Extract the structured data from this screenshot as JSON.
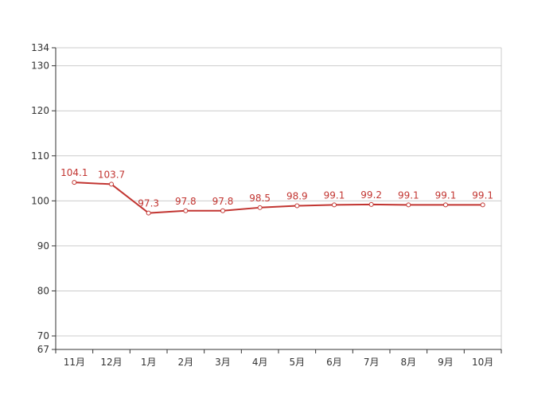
{
  "chart_data": {
    "type": "line",
    "categories": [
      "11月",
      "12月",
      "1月",
      "2月",
      "3月",
      "4月",
      "5月",
      "6月",
      "7月",
      "8月",
      "9月",
      "10月"
    ],
    "series": [
      {
        "values": [
          104.1,
          103.7,
          97.3,
          97.8,
          97.8,
          98.5,
          98.9,
          99.1,
          99.2,
          99.1,
          99.1,
          99.1
        ],
        "data_labels": [
          "104.1",
          "103.7",
          "97.3",
          "97.8",
          "97.8",
          "98.5",
          "98.9",
          "99.1",
          "99.2",
          "99.1",
          "99.1",
          "99.1"
        ]
      }
    ],
    "title": "",
    "xlabel": "",
    "ylabel": "",
    "ylim": [
      67,
      134
    ],
    "yticks": [
      67,
      70,
      80,
      90,
      100,
      110,
      120,
      130,
      134
    ],
    "ytick_labels": [
      "67",
      "70",
      "80",
      "90",
      "100",
      "110",
      "120",
      "130",
      "134"
    ],
    "grid": true,
    "legend": "none",
    "colors": {
      "line": "#c23531",
      "grid": "#cccccc",
      "axis": "#333333",
      "marker_fill": "#ffffff"
    }
  }
}
